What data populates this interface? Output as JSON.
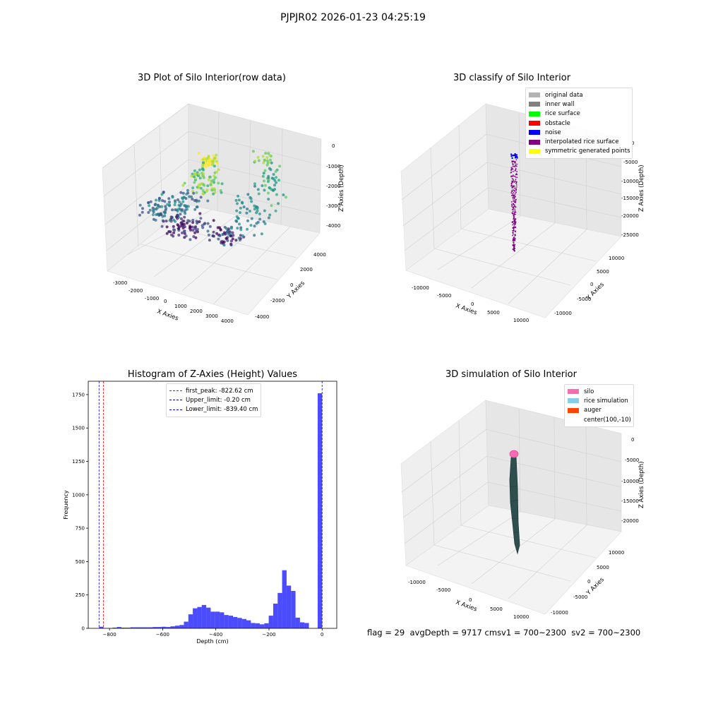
{
  "suptitle": "PJPJR02 2026-01-23 04:25:19",
  "footer": {
    "flag": "flag = 29",
    "avg": "avgDepth = 9717 cm",
    "sv1": "sv1 = 700~2300",
    "sv2": "sv2 = 700~2300"
  },
  "chart_data": [
    {
      "type": "scatter",
      "subtype": "3d",
      "title": "3D Plot of Silo Interior(row data)",
      "xlabel": "X Axies",
      "ylabel": "Y Axies",
      "zlabel": "Z Axies (Depth)",
      "xticks": [
        "-3000",
        "-2000",
        "-1000",
        "0",
        "1000",
        "2000",
        "3000",
        "4000"
      ],
      "yticks": [
        "-4000",
        "-2000",
        "0",
        "2000",
        "4000"
      ],
      "zticks": [
        "0",
        "-1000",
        "-2000",
        "-3000",
        "-4000"
      ],
      "colormap": "viridis",
      "grid": true
    },
    {
      "type": "scatter",
      "subtype": "3d",
      "title": "3D classify of Silo Interior",
      "xlabel": "X Axies",
      "ylabel": "Y Axies",
      "zlabel": "Z Axies (Depth)",
      "xticks": [
        "-10000",
        "-5000",
        "0",
        "5000",
        "10000"
      ],
      "yticks": [
        "-10000",
        "-5000",
        "0",
        "5000",
        "10000"
      ],
      "zticks": [
        "0",
        "-5000",
        "-10000",
        "-15000",
        "-20000",
        "-25000"
      ],
      "legend_position": "top-right",
      "legend": [
        {
          "label": "original data",
          "color": "#b3b3b3"
        },
        {
          "label": "inner wall",
          "color": "#808080"
        },
        {
          "label": "rice surface",
          "color": "#00ff00"
        },
        {
          "label": "obstacle",
          "color": "#ff0000"
        },
        {
          "label": "noise",
          "color": "#0000ff"
        },
        {
          "label": "interpolated rice surface",
          "color": "#800080"
        },
        {
          "label": "symmetric generated points",
          "color": "#ffff00"
        }
      ],
      "grid": true
    },
    {
      "type": "bar",
      "subtype": "histogram",
      "title": "Histogram of Z-Axies (Height) Values",
      "xlabel": "Depth (cm)",
      "ylabel": "Frequency",
      "xticks": [
        "−800",
        "−600",
        "−400",
        "−200",
        "0"
      ],
      "yticks": [
        "0",
        "250",
        "500",
        "750",
        "1000",
        "1250",
        "1500",
        "1750"
      ],
      "xlim": [
        -880,
        55
      ],
      "ylim": [
        0,
        1850
      ],
      "bar_color": "#0000ff",
      "bin_width": 16.8,
      "bins": [
        {
          "x": -839.4,
          "v": 12
        },
        {
          "x": -822.6,
          "v": 2
        },
        {
          "x": -805.8,
          "v": 0
        },
        {
          "x": -789.0,
          "v": 5
        },
        {
          "x": -772.2,
          "v": 10
        },
        {
          "x": -755.4,
          "v": 5
        },
        {
          "x": -738.6,
          "v": 5
        },
        {
          "x": -721.8,
          "v": 8
        },
        {
          "x": -705.0,
          "v": 8
        },
        {
          "x": -688.2,
          "v": 8
        },
        {
          "x": -671.4,
          "v": 8
        },
        {
          "x": -654.6,
          "v": 8
        },
        {
          "x": -637.8,
          "v": 10
        },
        {
          "x": -621.0,
          "v": 10
        },
        {
          "x": -604.2,
          "v": 12
        },
        {
          "x": -587.4,
          "v": 10
        },
        {
          "x": -570.6,
          "v": 15
        },
        {
          "x": -553.8,
          "v": 20
        },
        {
          "x": -537.0,
          "v": 25
        },
        {
          "x": -520.2,
          "v": 50
        },
        {
          "x": -503.4,
          "v": 105
        },
        {
          "x": -486.6,
          "v": 150
        },
        {
          "x": -469.8,
          "v": 160
        },
        {
          "x": -453.0,
          "v": 175
        },
        {
          "x": -436.2,
          "v": 155
        },
        {
          "x": -419.4,
          "v": 125
        },
        {
          "x": -402.6,
          "v": 125
        },
        {
          "x": -385.8,
          "v": 120
        },
        {
          "x": -369.0,
          "v": 100
        },
        {
          "x": -352.2,
          "v": 95
        },
        {
          "x": -335.4,
          "v": 85
        },
        {
          "x": -318.6,
          "v": 78
        },
        {
          "x": -301.8,
          "v": 70
        },
        {
          "x": -285.0,
          "v": 60
        },
        {
          "x": -268.2,
          "v": 40
        },
        {
          "x": -251.4,
          "v": 38
        },
        {
          "x": -234.6,
          "v": 30
        },
        {
          "x": -217.8,
          "v": 38
        },
        {
          "x": -201.0,
          "v": 95
        },
        {
          "x": -184.2,
          "v": 185
        },
        {
          "x": -167.4,
          "v": 265
        },
        {
          "x": -150.6,
          "v": 435
        },
        {
          "x": -133.8,
          "v": 320
        },
        {
          "x": -117.0,
          "v": 280
        },
        {
          "x": -100.2,
          "v": 80
        },
        {
          "x": -83.4,
          "v": 45
        },
        {
          "x": -66.6,
          "v": 40
        },
        {
          "x": -16.8,
          "v": 1760
        }
      ],
      "vlines": [
        {
          "label": "first_peak: -822.62 cm",
          "x": -822.62,
          "color": "#ff0000"
        },
        {
          "label": "Upper_limit: -0.20 cm",
          "x": -0.2,
          "color": "#00008b"
        },
        {
          "label": "Lower_limit: -839.40 cm",
          "x": -839.4,
          "color": "#0000ff"
        }
      ],
      "legend_position": "top-center"
    },
    {
      "type": "area",
      "subtype": "3d-surface",
      "title": "3D simulation of Silo Interior",
      "xlabel": "X Axies",
      "ylabel": "Y Axies",
      "zlabel": "Z Axies (Depth)",
      "xticks": [
        "-10000",
        "-5000",
        "0",
        "5000",
        "10000"
      ],
      "yticks": [
        "-10000",
        "-5000",
        "0",
        "5000",
        "10000"
      ],
      "zticks": [
        "0",
        "-5000",
        "-10000",
        "-15000",
        "-20000"
      ],
      "legend_position": "top-right",
      "legend": [
        {
          "label": "silo",
          "color": "#ff69b4"
        },
        {
          "label": "rice simulation",
          "color": "#87ceeb"
        },
        {
          "label": "auger",
          "color": "#ff4500"
        },
        {
          "label": "center(100,-10)",
          "color": ""
        }
      ],
      "grid": true
    }
  ]
}
